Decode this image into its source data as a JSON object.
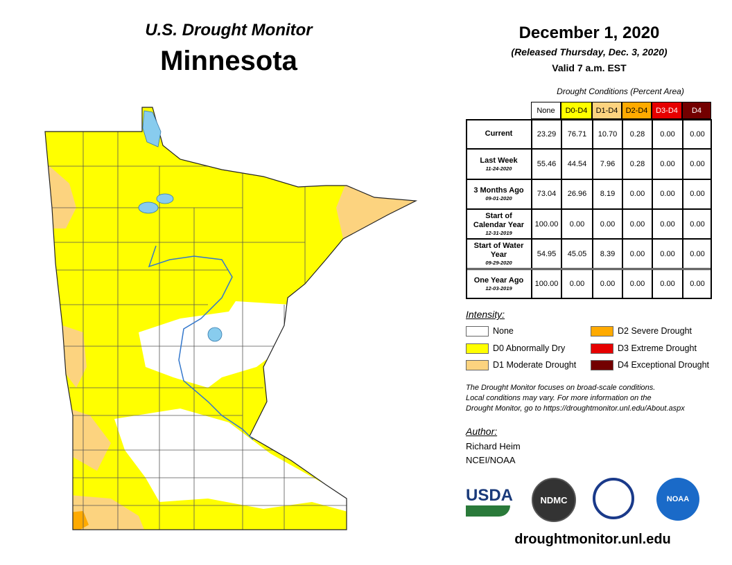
{
  "header": {
    "title": "U.S. Drought Monitor",
    "state": "Minnesota",
    "date": "December 1, 2020",
    "released": "(Released Thursday, Dec. 3, 2020)",
    "valid": "Valid 7 a.m. EST"
  },
  "table": {
    "caption": "Drought Conditions (Percent Area)",
    "columns": [
      {
        "label": "None",
        "color": "#ffffff",
        "text": "#000000"
      },
      {
        "label": "D0-D4",
        "color": "#ffff00",
        "text": "#000000"
      },
      {
        "label": "D1-D4",
        "color": "#fcd37f",
        "text": "#000000"
      },
      {
        "label": "D2-D4",
        "color": "#ffaa00",
        "text": "#000000"
      },
      {
        "label": "D3-D4",
        "color": "#e60000",
        "text": "#ffffff"
      },
      {
        "label": "D4",
        "color": "#730000",
        "text": "#ffffff"
      }
    ],
    "rows": [
      {
        "label": "Current",
        "values": [
          "23.29",
          "76.71",
          "10.70",
          "0.28",
          "0.00",
          "0.00"
        ]
      },
      {
        "label": "Last Week",
        "date": "11-24-2020",
        "values": [
          "55.46",
          "44.54",
          "7.96",
          "0.28",
          "0.00",
          "0.00"
        ]
      },
      {
        "label": "3 Months Ago",
        "date": "09-01-2020",
        "values": [
          "73.04",
          "26.96",
          "8.19",
          "0.00",
          "0.00",
          "0.00"
        ]
      },
      {
        "label": "Start of Calendar Year",
        "date": "12-31-2019",
        "values": [
          "100.00",
          "0.00",
          "0.00",
          "0.00",
          "0.00",
          "0.00"
        ]
      },
      {
        "label": "Start of Water Year",
        "date": "09-29-2020",
        "values": [
          "54.95",
          "45.05",
          "8.39",
          "0.00",
          "0.00",
          "0.00"
        ]
      },
      {
        "label": "One Year Ago",
        "date": "12-03-2019",
        "values": [
          "100.00",
          "0.00",
          "0.00",
          "0.00",
          "0.00",
          "0.00"
        ]
      }
    ]
  },
  "legend": {
    "title": "Intensity:",
    "items": [
      {
        "label": "None",
        "color": "#ffffff"
      },
      {
        "label": "D0 Abnormally Dry",
        "color": "#ffff00"
      },
      {
        "label": "D1 Moderate Drought",
        "color": "#fcd37f"
      },
      {
        "label": "D2 Severe Drought",
        "color": "#ffaa00"
      },
      {
        "label": "D3 Extreme Drought",
        "color": "#e60000"
      },
      {
        "label": "D4 Exceptional Drought",
        "color": "#730000"
      }
    ]
  },
  "note": [
    "The Drought Monitor focuses on broad-scale conditions.",
    "Local conditions may vary. For more information on the",
    "Drought Monitor, go to https://droughtmonitor.unl.edu/About.aspx"
  ],
  "author": {
    "title": "Author:",
    "name": "Richard Heim",
    "org": "NCEI/NOAA"
  },
  "logos": {
    "usda": "USDA",
    "ndmc": "NDMC",
    "noaa": "NOAA"
  },
  "footer": {
    "url": "droughtmonitor.unl.edu"
  }
}
